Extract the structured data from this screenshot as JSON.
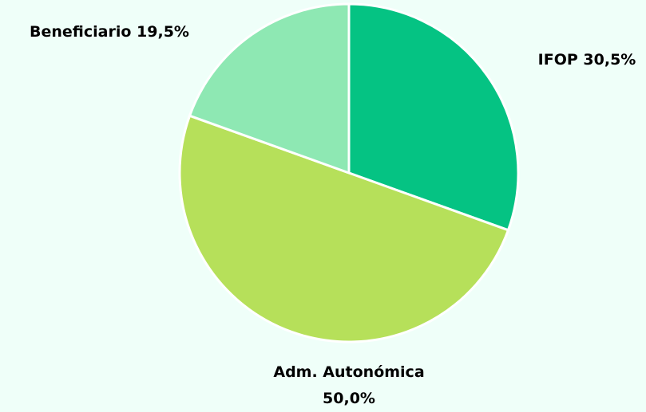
{
  "chart_data": {
    "type": "pie",
    "categories": [
      "IFOP",
      "Adm. Autonómica",
      "Beneficiario"
    ],
    "values": [
      30.5,
      50.0,
      19.5
    ],
    "value_labels": [
      "30,5%",
      "50,0%",
      "19,5%"
    ],
    "colors": [
      "#05c383",
      "#b6e05a",
      "#8ee8b3"
    ]
  }
}
